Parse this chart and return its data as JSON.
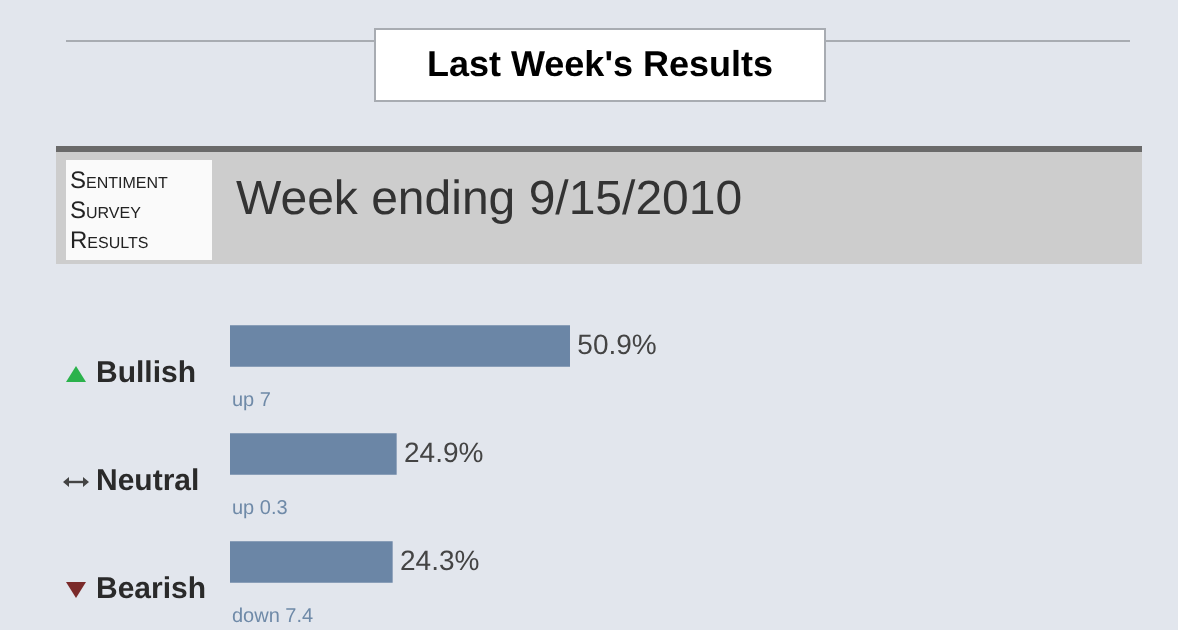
{
  "chart_data": {
    "type": "bar",
    "orientation": "horizontal",
    "title": "Last Week's Results",
    "subtitle": "Week ending 9/15/2010",
    "categories": [
      "Bullish",
      "Neutral",
      "Bearish"
    ],
    "values": [
      50.9,
      24.9,
      24.3
    ],
    "value_labels": [
      "50.9%",
      "24.9%",
      "24.3%"
    ],
    "color": "#6b86a6",
    "annotations": [
      "Sentiment Survey Results",
      {
        "text": "up 7",
        "y": "Bullish"
      },
      {
        "text": "up 0.3",
        "y": "Neutral"
      },
      {
        "text": "down 7.4",
        "y": "Bearish"
      }
    ],
    "legend": false
  }
}
